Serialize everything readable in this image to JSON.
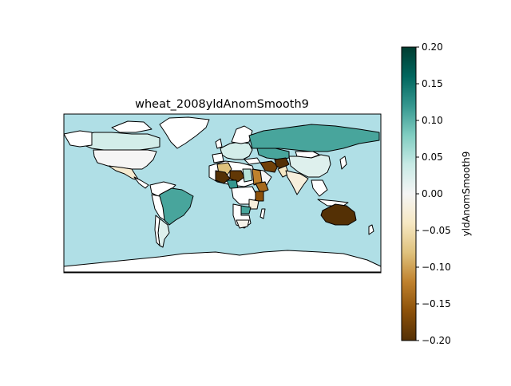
{
  "title": "wheat_2008yldAnomSmooth9",
  "colorbar": {
    "label": "yldAnomSmooth9",
    "min": -0.2,
    "max": 0.2,
    "ticks": [
      "0.20",
      "0.15",
      "0.10",
      "0.05",
      "0.00",
      "−0.05",
      "−0.10",
      "−0.15",
      "−0.20"
    ],
    "colormap": "BrBG",
    "stops": [
      "#003c30",
      "#01665e",
      "#35978f",
      "#80cdc1",
      "#c7eae5",
      "#f5f5f5",
      "#f6e8c3",
      "#dfc27d",
      "#bf812d",
      "#8c510a",
      "#543005"
    ]
  },
  "colors": {
    "ocean": "#b0dfe6",
    "no_data": "#ffffff",
    "border": "#000000"
  },
  "regions": [
    {
      "name": "Russia",
      "value": 0.11
    },
    {
      "name": "Kazakhstan",
      "value": 0.11
    },
    {
      "name": "Brazil",
      "value": 0.11
    },
    {
      "name": "Zambia",
      "value": 0.11
    },
    {
      "name": "Canada",
      "value": 0.03
    },
    {
      "name": "China",
      "value": 0.02
    },
    {
      "name": "USA",
      "value": 0.0
    },
    {
      "name": "Mexico",
      "value": -0.03
    },
    {
      "name": "Argentina",
      "value": 0.02
    },
    {
      "name": "Europe",
      "value": 0.03
    },
    {
      "name": "India",
      "value": -0.02
    },
    {
      "name": "Australia",
      "value": -0.2
    },
    {
      "name": "Mali",
      "value": -0.2
    },
    {
      "name": "Niger",
      "value": -0.19
    },
    {
      "name": "Algeria",
      "value": -0.08
    },
    {
      "name": "Sudan",
      "value": -0.12
    },
    {
      "name": "Ethiopia",
      "value": -0.14
    },
    {
      "name": "Iran",
      "value": -0.18
    },
    {
      "name": "Afghanistan",
      "value": -0.2
    },
    {
      "name": "Kenya",
      "value": -0.16
    },
    {
      "name": "Tanzania",
      "value": -0.02
    },
    {
      "name": "Chad",
      "value": 0.05
    },
    {
      "name": "Nigeria",
      "value": 0.12
    },
    {
      "name": "South Africa",
      "value": -0.01
    },
    {
      "name": "Saudi Arabia",
      "value": 0.0
    },
    {
      "name": "Pakistan",
      "value": -0.04
    }
  ]
}
